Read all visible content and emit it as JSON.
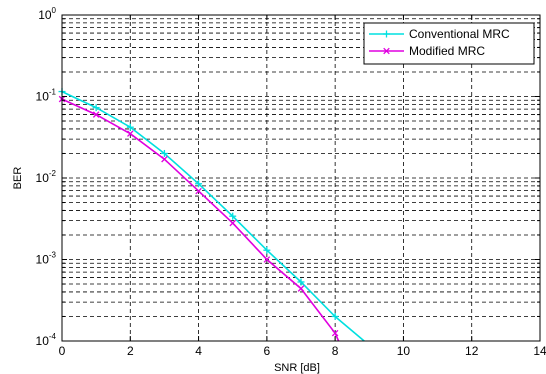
{
  "chart_data": {
    "type": "line",
    "title": "",
    "xlabel": "SNR [dB]",
    "ylabel": "BER",
    "xlim": [
      0,
      14
    ],
    "ylim": [
      0.0001,
      1
    ],
    "yscale": "log",
    "grid": true,
    "legend_position": "top-right",
    "x_ticks": [
      "0",
      "2",
      "4",
      "6",
      "8",
      "10",
      "12",
      "14"
    ],
    "y_tick_base": "10",
    "y_tick_exponents": [
      "-4",
      "-3",
      "-2",
      "-1",
      "0"
    ],
    "series": [
      {
        "name": "Conventional MRC",
        "color": "#00e0e0",
        "marker": "plus",
        "x": [
          0,
          1,
          2,
          3,
          4,
          5,
          6,
          7,
          8,
          8.85
        ],
        "y": [
          0.115,
          0.073,
          0.042,
          0.02,
          0.0085,
          0.0034,
          0.0013,
          0.00053,
          0.0002,
          0.0001
        ]
      },
      {
        "name": "Modified MRC",
        "color": "#e000e0",
        "marker": "x",
        "x": [
          0,
          1,
          2,
          3,
          4,
          5,
          6,
          7,
          8,
          8.1
        ],
        "y": [
          0.093,
          0.06,
          0.035,
          0.017,
          0.0069,
          0.0028,
          0.001,
          0.00044,
          0.000125,
          0.0001
        ]
      }
    ]
  }
}
